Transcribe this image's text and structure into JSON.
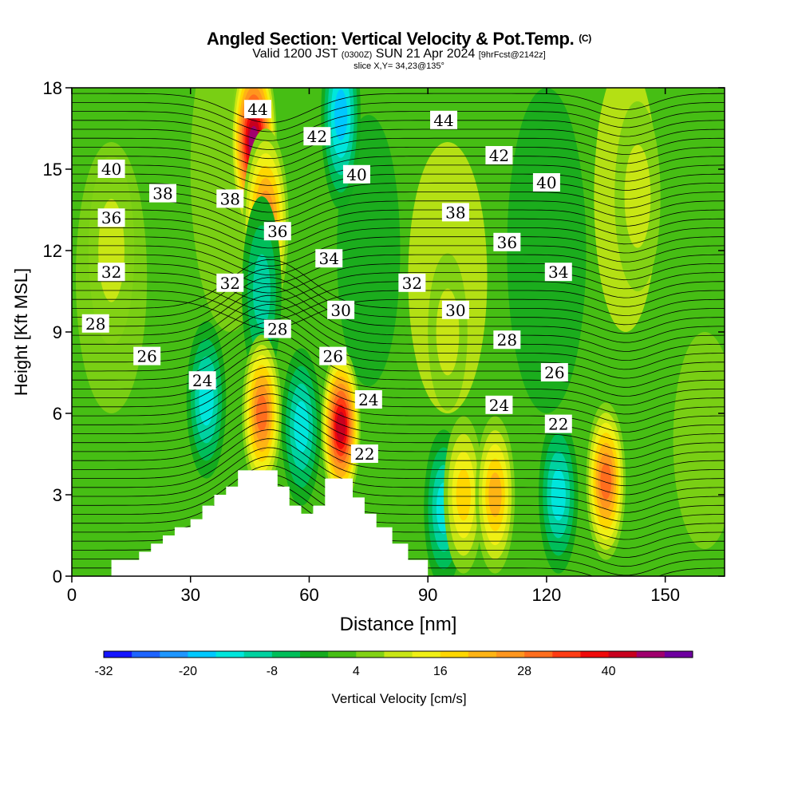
{
  "title": {
    "main": "Angled Section: Vertical Velocity & Pot.Temp.",
    "tag": "(C)"
  },
  "subtitle": {
    "valid": "Valid 1200 JST",
    "utc": "(0300Z)",
    "date": "SUN 21 Apr 2024",
    "fcst": "[9hrFcst@2142z]"
  },
  "slice_label": "slice X,Y= 34,23@135°",
  "chart_data": {
    "type": "heatmap",
    "xlabel": "Distance [nm]",
    "ylabel": "Height [Kft MSL]",
    "xlim": [
      0,
      165
    ],
    "ylim": [
      0,
      18
    ],
    "xticks": [
      "0",
      "30",
      "60",
      "90",
      "120",
      "150"
    ],
    "yticks": [
      "0",
      "3",
      "6",
      "9",
      "12",
      "15",
      "18"
    ],
    "colorbar": {
      "label": "Vertical Velocity [cm/s]",
      "ticks": [
        "-32",
        "-20",
        "-8",
        "4",
        "16",
        "28",
        "40"
      ],
      "colors": [
        "#1414ff",
        "#1e64ff",
        "#1e96ff",
        "#00c8ff",
        "#00e6dc",
        "#00d2a0",
        "#00be5a",
        "#14aa1e",
        "#46be14",
        "#82d214",
        "#c8e614",
        "#f0f014",
        "#ffd700",
        "#ffb414",
        "#ff961e",
        "#ff6e1e",
        "#ff3c14",
        "#f00a0a",
        "#c8001e",
        "#a0006e",
        "#6e00a0"
      ]
    },
    "wind_features": [
      {
        "x": 46,
        "y": 16,
        "w": 45,
        "kind": "updraft"
      },
      {
        "x": 49,
        "y": 13,
        "w": 28,
        "kind": "updraft"
      },
      {
        "x": 68,
        "y": 17,
        "w": -22,
        "kind": "downdraft"
      },
      {
        "x": 48,
        "y": 10.5,
        "w": -14,
        "kind": "downdraft"
      },
      {
        "x": 34,
        "y": 6.5,
        "w": -18,
        "kind": "downdraft"
      },
      {
        "x": 48,
        "y": 6,
        "w": 28,
        "kind": "updraft"
      },
      {
        "x": 58,
        "y": 5.5,
        "w": -16,
        "kind": "downdraft"
      },
      {
        "x": 68,
        "y": 5.5,
        "w": 42,
        "kind": "updraft"
      },
      {
        "x": 94,
        "y": 2.5,
        "w": -16,
        "kind": "downdraft"
      },
      {
        "x": 99,
        "y": 3,
        "w": 16,
        "kind": "updraft"
      },
      {
        "x": 107,
        "y": 3,
        "w": 22,
        "kind": "updraft"
      },
      {
        "x": 123,
        "y": 3,
        "w": -16,
        "kind": "downdraft"
      },
      {
        "x": 135,
        "y": 3.5,
        "w": 30,
        "kind": "updraft"
      },
      {
        "x": 10,
        "y": 12,
        "w": 8,
        "kind": "updraft"
      },
      {
        "x": 143,
        "y": 14,
        "w": 8,
        "kind": "updraft"
      },
      {
        "x": 95,
        "y": 9,
        "w": 8,
        "kind": "updraft"
      }
    ],
    "isentropes": [
      "22",
      "24",
      "26",
      "28",
      "30",
      "32",
      "34",
      "36",
      "38",
      "40",
      "42",
      "44"
    ],
    "contour_labels": [
      {
        "text": "44",
        "x": 47,
        "y": 17.2
      },
      {
        "text": "42",
        "x": 62,
        "y": 16.2
      },
      {
        "text": "40",
        "x": 72,
        "y": 14.8
      },
      {
        "text": "38",
        "x": 40,
        "y": 13.9
      },
      {
        "text": "36",
        "x": 52,
        "y": 12.7
      },
      {
        "text": "34",
        "x": 65,
        "y": 11.7
      },
      {
        "text": "32",
        "x": 40,
        "y": 10.8
      },
      {
        "text": "30",
        "x": 68,
        "y": 9.8
      },
      {
        "text": "28",
        "x": 52,
        "y": 9.1
      },
      {
        "text": "26",
        "x": 66,
        "y": 8.1
      },
      {
        "text": "24",
        "x": 75,
        "y": 6.5
      },
      {
        "text": "22",
        "x": 74,
        "y": 4.5
      },
      {
        "text": "40",
        "x": 10,
        "y": 15
      },
      {
        "text": "38",
        "x": 23,
        "y": 14.1
      },
      {
        "text": "36",
        "x": 10,
        "y": 13.2
      },
      {
        "text": "32",
        "x": 10,
        "y": 11.2
      },
      {
        "text": "28",
        "x": 6,
        "y": 9.3
      },
      {
        "text": "26",
        "x": 19,
        "y": 8.1
      },
      {
        "text": "24",
        "x": 33,
        "y": 7.2
      },
      {
        "text": "44",
        "x": 94,
        "y": 16.8
      },
      {
        "text": "42",
        "x": 108,
        "y": 15.5
      },
      {
        "text": "40",
        "x": 120,
        "y": 14.5
      },
      {
        "text": "38",
        "x": 97,
        "y": 13.4
      },
      {
        "text": "36",
        "x": 110,
        "y": 12.3
      },
      {
        "text": "34",
        "x": 123,
        "y": 11.2
      },
      {
        "text": "32",
        "x": 86,
        "y": 10.8
      },
      {
        "text": "30",
        "x": 97,
        "y": 9.8
      },
      {
        "text": "28",
        "x": 110,
        "y": 8.7
      },
      {
        "text": "26",
        "x": 122,
        "y": 7.5
      },
      {
        "text": "24",
        "x": 108,
        "y": 6.3
      },
      {
        "text": "22",
        "x": 123,
        "y": 5.6
      }
    ],
    "terrain": [
      [
        0,
        0
      ],
      [
        10,
        0
      ],
      [
        10,
        0.6
      ],
      [
        17,
        0.6
      ],
      [
        17,
        0.9
      ],
      [
        20,
        0.9
      ],
      [
        20,
        1.2
      ],
      [
        23,
        1.2
      ],
      [
        23,
        1.5
      ],
      [
        26,
        1.5
      ],
      [
        26,
        1.8
      ],
      [
        30,
        1.8
      ],
      [
        30,
        2.1
      ],
      [
        33,
        2.1
      ],
      [
        33,
        2.6
      ],
      [
        36,
        2.6
      ],
      [
        36,
        3.0
      ],
      [
        39,
        3.0
      ],
      [
        39,
        3.3
      ],
      [
        42,
        3.3
      ],
      [
        42,
        3.9
      ],
      [
        52,
        3.9
      ],
      [
        52,
        3.3
      ],
      [
        55,
        3.3
      ],
      [
        55,
        2.6
      ],
      [
        58,
        2.6
      ],
      [
        58,
        2.3
      ],
      [
        61,
        2.3
      ],
      [
        61,
        2.6
      ],
      [
        64,
        2.6
      ],
      [
        64,
        3.6
      ],
      [
        71,
        3.6
      ],
      [
        71,
        2.9
      ],
      [
        74,
        2.9
      ],
      [
        74,
        2.3
      ],
      [
        77,
        2.3
      ],
      [
        77,
        1.8
      ],
      [
        81,
        1.8
      ],
      [
        81,
        1.2
      ],
      [
        85,
        1.2
      ],
      [
        85,
        0.6
      ],
      [
        90,
        0.6
      ],
      [
        90,
        0
      ],
      [
        0,
        0
      ]
    ]
  }
}
